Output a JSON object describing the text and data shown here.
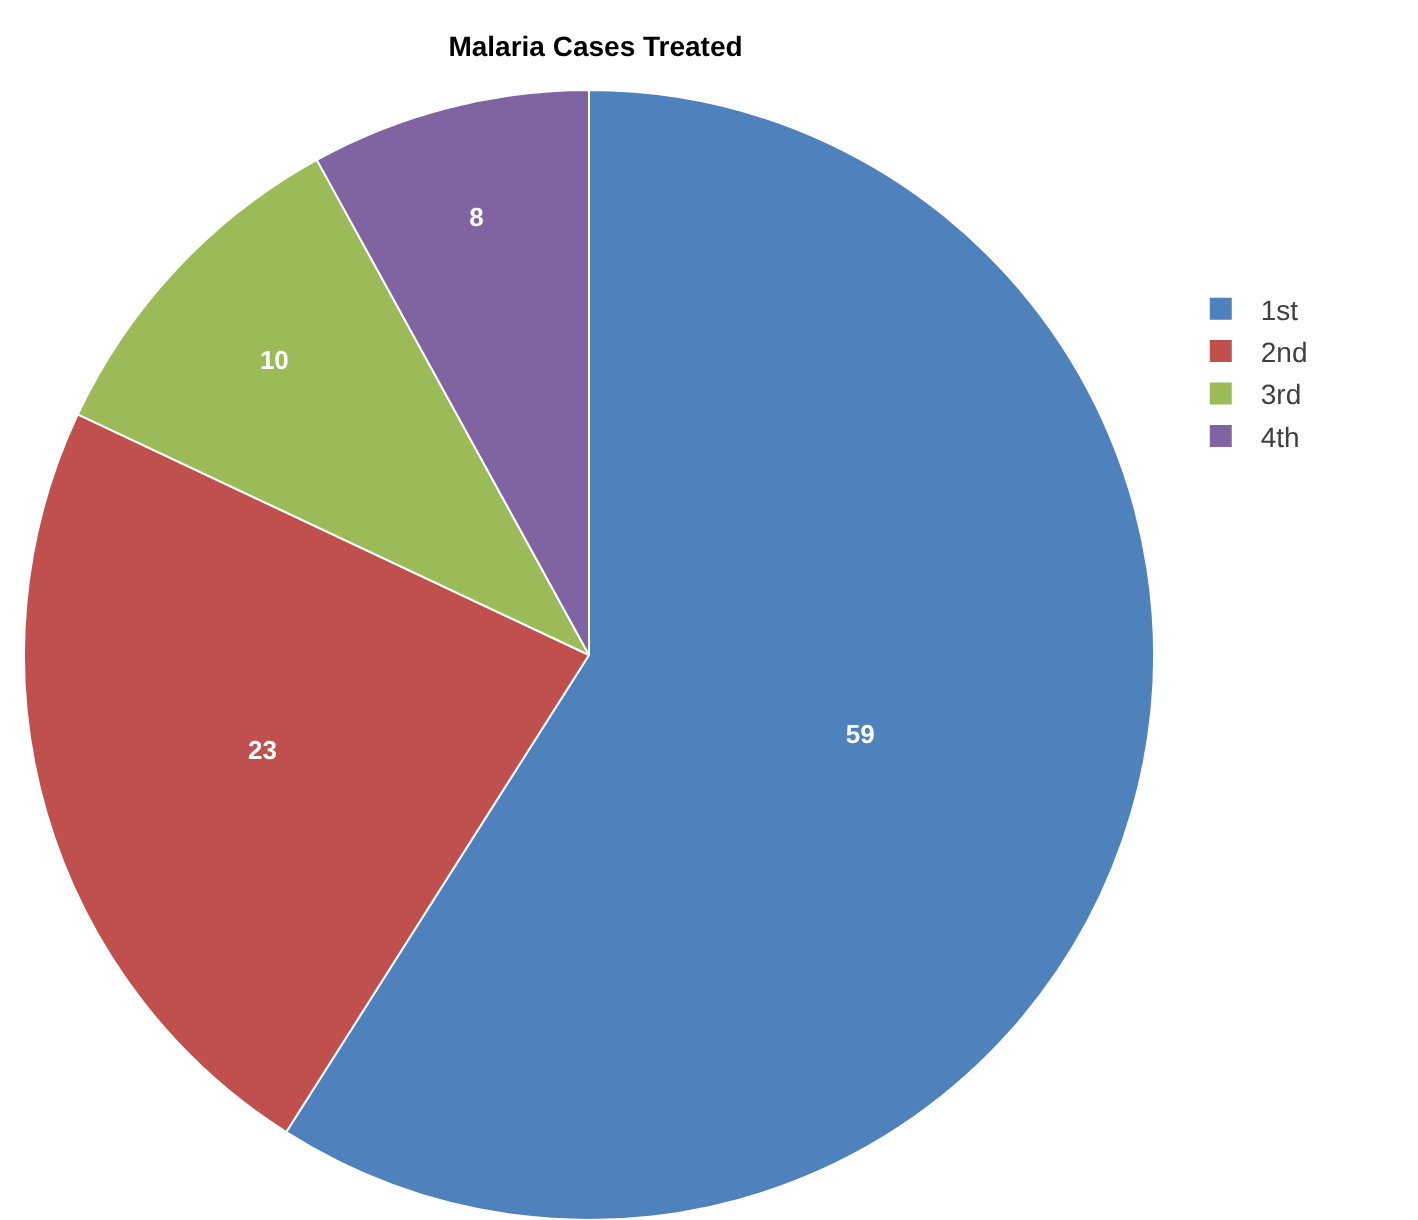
{
  "chart_data": {
    "type": "pie",
    "title": "Malaria Cases Treated",
    "categories": [
      "1st",
      "2nd",
      "3rd",
      "4th"
    ],
    "values": [
      59,
      23,
      10,
      8
    ],
    "colors": [
      "#4f81bd",
      "#c0504d",
      "#9bbb59",
      "#8064a2"
    ],
    "data_labels": true,
    "legend": "right"
  }
}
